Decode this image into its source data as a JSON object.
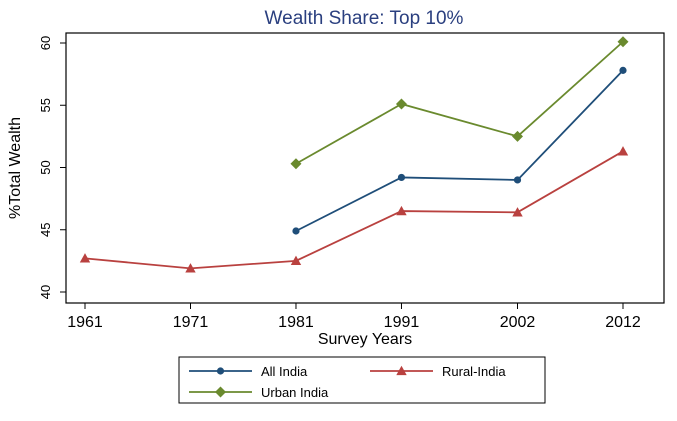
{
  "chart_data": {
    "type": "line",
    "title": "Wealth Share: Top 10%",
    "xlabel": "Survey Years",
    "ylabel": "%Total Wealth",
    "categories": [
      "1961",
      "1971",
      "1981",
      "1991",
      "2002",
      "2012"
    ],
    "x": [
      1961,
      1971,
      1981,
      1991,
      2002,
      2012
    ],
    "xlim": [
      1961,
      2012
    ],
    "ylim": [
      40,
      60
    ],
    "yticks": [
      40,
      45,
      50,
      55,
      60
    ],
    "grid": false,
    "legend_position": "bottom",
    "series": [
      {
        "name": "All India",
        "color": "#1f4e79",
        "marker": "circle",
        "values": [
          null,
          null,
          44.9,
          49.2,
          49.0,
          57.8
        ]
      },
      {
        "name": "Rural-India",
        "color": "#b9413f",
        "marker": "triangle",
        "values": [
          42.7,
          41.9,
          42.5,
          46.5,
          46.4,
          51.3
        ]
      },
      {
        "name": "Urban India",
        "color": "#6a8a2e",
        "marker": "diamond",
        "values": [
          null,
          null,
          50.3,
          55.1,
          52.5,
          60.1
        ]
      }
    ]
  }
}
